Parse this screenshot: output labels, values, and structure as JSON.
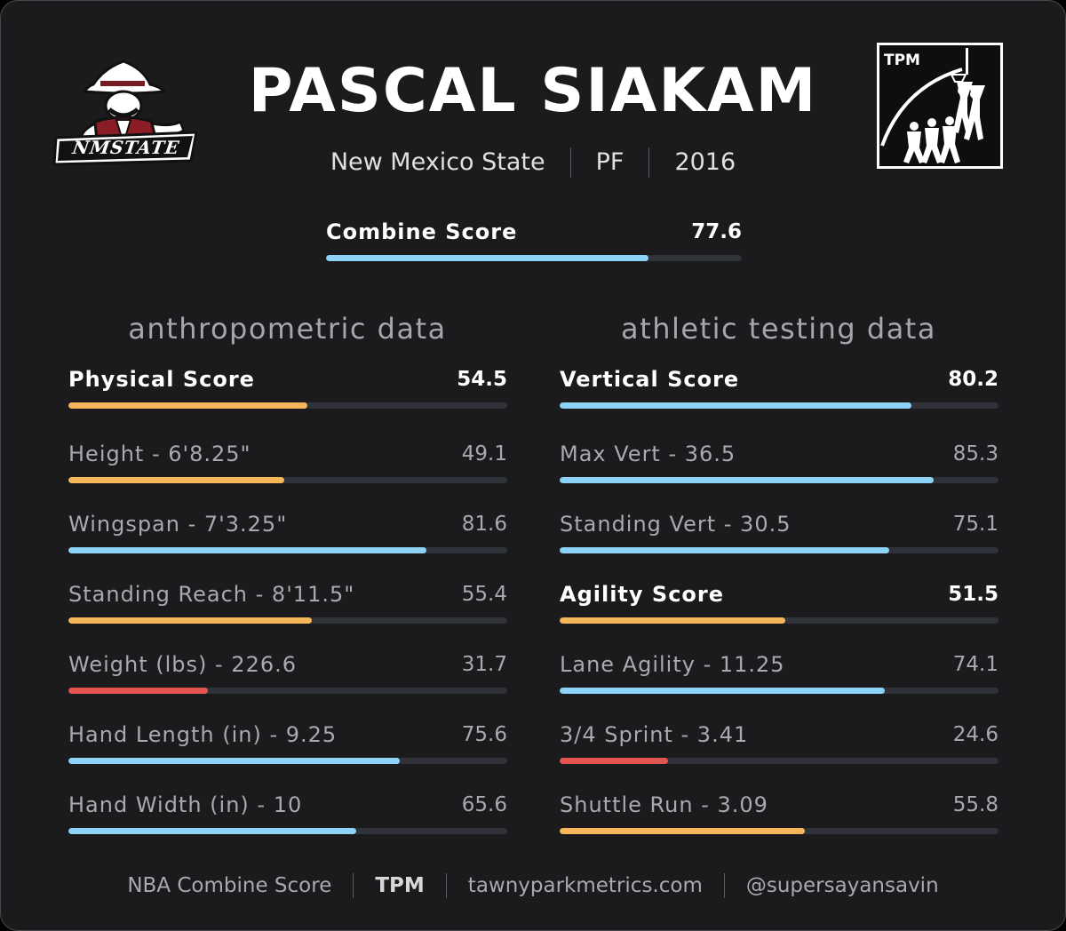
{
  "player": {
    "name": "PASCAL SIAKAM",
    "school": "New Mexico State",
    "position": "PF",
    "year": "2016"
  },
  "school_logo": {
    "icon": "nm-state-cowboy-logo",
    "text": "NMSTATE"
  },
  "brand_logo": {
    "icon": "tpm-basketball-logo",
    "text": "TPM"
  },
  "colors": {
    "high": "#8dd3f7",
    "mid": "#f6b75a",
    "low": "#e25551",
    "track": "#2f3238",
    "background": "#1b1b1d"
  },
  "combine": {
    "label": "Combine Score",
    "value": "77.6",
    "score": 77.6
  },
  "sections": {
    "anthropometric": {
      "title": "anthropometric data",
      "metrics": [
        {
          "label": "Physical Score",
          "value": "54.5",
          "score": 54.5,
          "primary": true,
          "color": "mid"
        },
        {
          "label": "Height - 6'8.25\"",
          "value": "49.1",
          "score": 49.1,
          "primary": false,
          "color": "mid"
        },
        {
          "label": "Wingspan - 7'3.25\"",
          "value": "81.6",
          "score": 81.6,
          "primary": false,
          "color": "high"
        },
        {
          "label": "Standing Reach - 8'11.5\"",
          "value": "55.4",
          "score": 55.4,
          "primary": false,
          "color": "mid"
        },
        {
          "label": "Weight (lbs) - 226.6",
          "value": "31.7",
          "score": 31.7,
          "primary": false,
          "color": "low"
        },
        {
          "label": "Hand Length (in) - 9.25",
          "value": "75.6",
          "score": 75.6,
          "primary": false,
          "color": "high"
        },
        {
          "label": "Hand Width (in) - 10",
          "value": "65.6",
          "score": 65.6,
          "primary": false,
          "color": "high"
        }
      ]
    },
    "athletic": {
      "title": "athletic testing data",
      "metrics": [
        {
          "label": "Vertical Score",
          "value": "80.2",
          "score": 80.2,
          "primary": true,
          "color": "high"
        },
        {
          "label": "Max Vert - 36.5",
          "value": "85.3",
          "score": 85.3,
          "primary": false,
          "color": "high"
        },
        {
          "label": "Standing Vert - 30.5",
          "value": "75.1",
          "score": 75.1,
          "primary": false,
          "color": "high"
        },
        {
          "label": "Agility Score",
          "value": "51.5",
          "score": 51.5,
          "primary": true,
          "color": "mid"
        },
        {
          "label": "Lane Agility - 11.25",
          "value": "74.1",
          "score": 74.1,
          "primary": false,
          "color": "high"
        },
        {
          "label": "3/4 Sprint - 3.41",
          "value": "24.6",
          "score": 24.6,
          "primary": false,
          "color": "low"
        },
        {
          "label": "Shuttle Run - 3.09",
          "value": "55.8",
          "score": 55.8,
          "primary": false,
          "color": "mid"
        }
      ]
    }
  },
  "footer": {
    "items": [
      "NBA Combine Score",
      "TPM",
      "tawnyparkmetrics.com",
      "@supersayansavin"
    ]
  }
}
